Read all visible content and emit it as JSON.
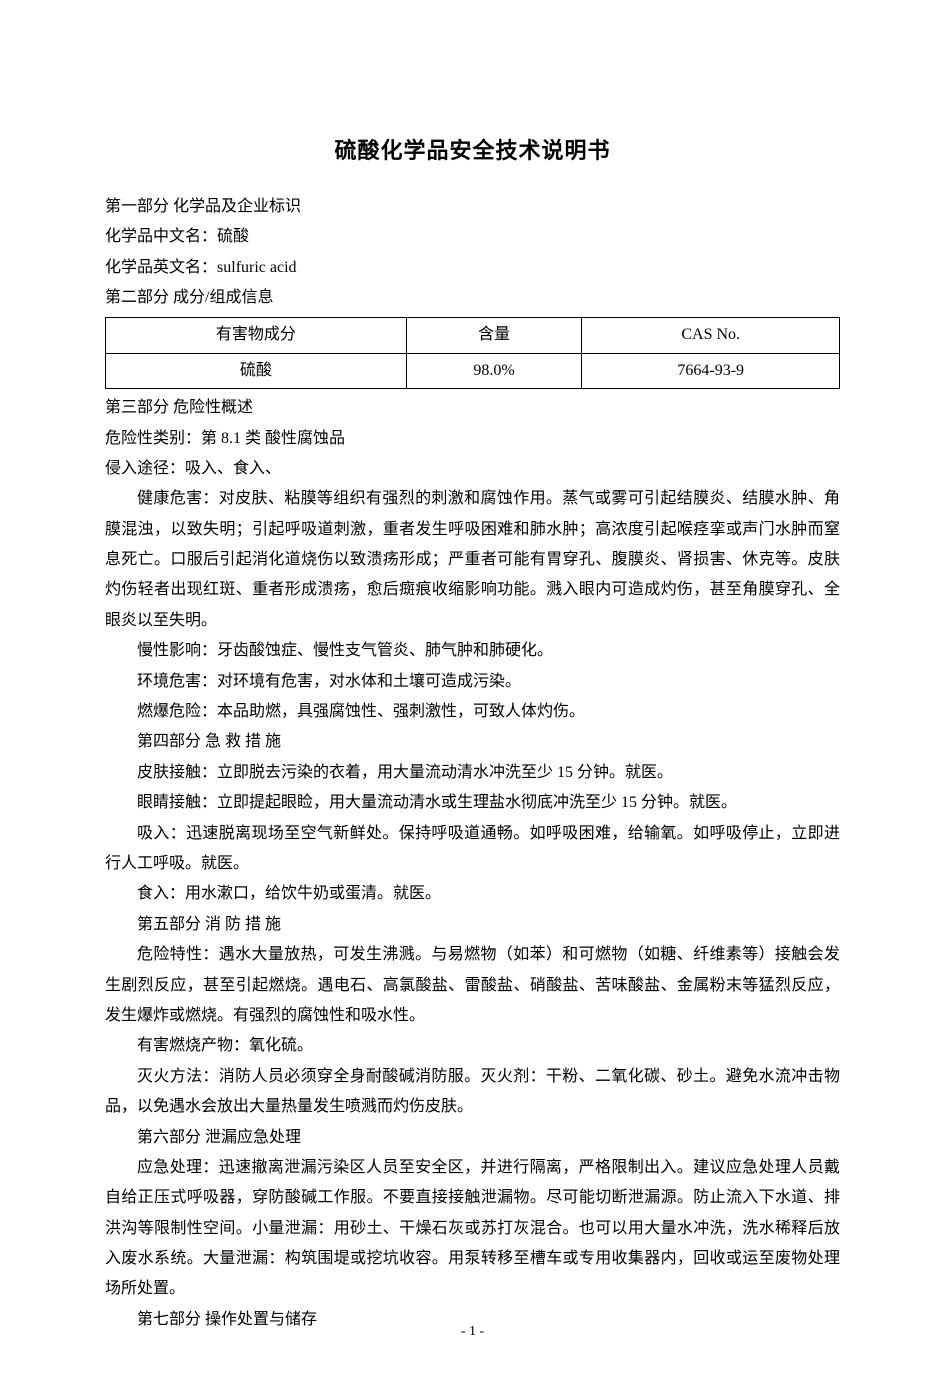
{
  "title": "硫酸化学品安全技术说明书",
  "sections": {
    "s1_heading": "第一部分  化学品及企业标识",
    "s1_cn_label": "化学品中文名：",
    "s1_cn_value": "硫酸",
    "s1_en_label": "化学品英文名：",
    "s1_en_value": "sulfuric  acid",
    "s2_heading": "第二部分  成分/组成信息"
  },
  "table": {
    "columns": [
      "有害物成分",
      "含量",
      "CAS  No."
    ],
    "rows": [
      [
        "硫酸",
        "98.0%",
        "7664-93-9"
      ]
    ]
  },
  "s3": {
    "heading": "第三部分  危险性概述",
    "line1": "危险性类别：第 8.1 类  酸性腐蚀品",
    "line2": "侵入途径：吸入、食入、",
    "health": "健康危害：对皮肤、粘膜等组织有强烈的刺激和腐蚀作用。蒸气或雾可引起结膜炎、结膜水肿、角膜混浊，以致失明；引起呼吸道刺激，重者发生呼吸困难和肺水肿；高浓度引起喉痉挛或声门水肿而窒息死亡。口服后引起消化道烧伤以致溃疡形成；严重者可能有胃穿孔、腹膜炎、肾损害、休克等。皮肤灼伤轻者出现红斑、重者形成溃疡，愈后癍痕收缩影响功能。溅入眼内可造成灼伤，甚至角膜穿孔、全眼炎以至失明。",
    "chronic": "慢性影响：牙齿酸蚀症、慢性支气管炎、肺气肿和肺硬化。",
    "env": "环境危害：对环境有危害，对水体和土壤可造成污染。",
    "explosion": "燃爆危险：本品助燃，具强腐蚀性、强刺激性，可致人体灼伤。"
  },
  "s4": {
    "heading": "第四部分  急 救 措 施",
    "skin": "皮肤接触：立即脱去污染的衣着，用大量流动清水冲洗至少 15 分钟。就医。",
    "eye": "眼睛接触：立即提起眼睑，用大量流动清水或生理盐水彻底冲洗至少 15 分钟。就医。",
    "inhale": "吸入：迅速脱离现场至空气新鲜处。保持呼吸道通畅。如呼吸困难，给输氧。如呼吸停止，立即进行人工呼吸。就医。",
    "ingest": "食入：用水漱口，给饮牛奶或蛋清。就医。"
  },
  "s5": {
    "heading": "第五部分  消 防 措 施",
    "hazard": "危险特性：遇水大量放热，可发生沸溅。与易燃物（如苯）和可燃物（如糖、纤维素等）接触会发生剧烈反应，甚至引起燃烧。遇电石、高氯酸盐、雷酸盐、硝酸盐、苦味酸盐、金属粉末等猛烈反应，发生爆炸或燃烧。有强烈的腐蚀性和吸水性。",
    "product": "有害燃烧产物：氧化硫。",
    "method": "灭火方法：消防人员必须穿全身耐酸碱消防服。灭火剂：干粉、二氧化碳、砂土。避免水流冲击物品，以免遇水会放出大量热量发生喷溅而灼伤皮肤。"
  },
  "s6": {
    "heading": "第六部分  泄漏应急处理",
    "content": "应急处理：迅速撤离泄漏污染区人员至安全区，并进行隔离，严格限制出入。建议应急处理人员戴自给正压式呼吸器，穿防酸碱工作服。不要直接接触泄漏物。尽可能切断泄漏源。防止流入下水道、排洪沟等限制性空间。小量泄漏：用砂土、干燥石灰或苏打灰混合。也可以用大量水冲洗，洗水稀释后放入废水系统。大量泄漏：构筑围堤或挖坑收容。用泵转移至槽车或专用收集器内，回收或运至废物处理场所处置。"
  },
  "s7": {
    "heading": "第七部分  操作处置与储存"
  },
  "page_number": "- 1 -",
  "colors": {
    "text": "#000000",
    "background": "#ffffff",
    "border": "#000000"
  },
  "typography": {
    "title_fontsize": 22,
    "body_fontsize": 16,
    "line_height": 1.9,
    "font_family_body": "SimSun",
    "font_family_en": "Times New Roman"
  }
}
